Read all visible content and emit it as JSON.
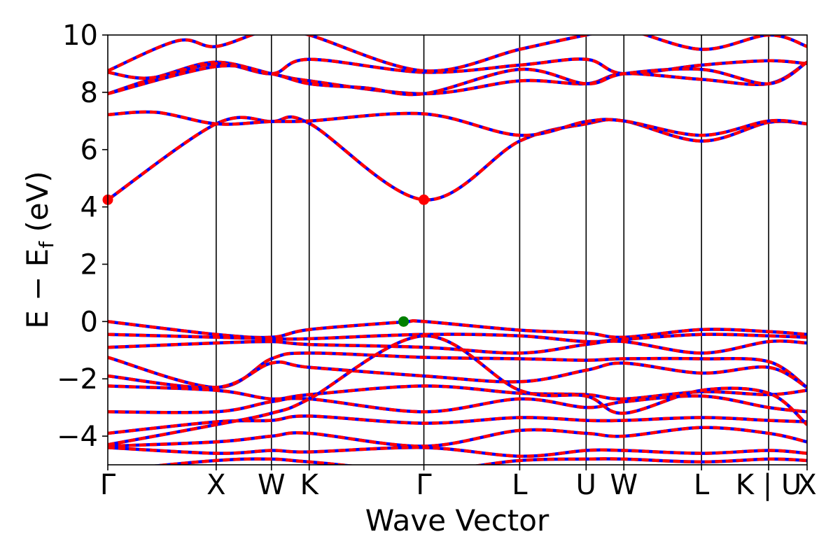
{
  "chart_data": {
    "type": "line",
    "xlabel": "Wave Vector",
    "ylabel": "E − E_f (eV)",
    "ylabel_main": "E  −  E",
    "ylabel_sub": "f",
    "ylabel_unit": " (eV)",
    "ylim": [
      -5,
      10
    ],
    "yticks": [
      "−4",
      "−2",
      "0",
      "2",
      "4",
      "6",
      "8",
      "10"
    ],
    "ytick_values": [
      -4,
      -2,
      0,
      2,
      4,
      6,
      8,
      10
    ],
    "x_range": [
      0,
      1
    ],
    "kpoint_labels": [
      "Γ",
      "X",
      "W",
      "K",
      "Γ",
      "L",
      "U",
      "W",
      "L",
      "K | U",
      "X"
    ],
    "kpoint_positions": [
      0.0,
      0.155,
      0.234,
      0.288,
      0.452,
      0.589,
      0.684,
      0.738,
      0.849,
      0.945,
      1.0
    ],
    "grid": false,
    "legend": "none",
    "colors": {
      "spin_up": "#0000ff",
      "spin_down": "#ff0000",
      "cbm": "#ff0000",
      "vbm": "#008000",
      "kpath_line": "#000000"
    },
    "markers": [
      {
        "name": "CBM",
        "x": 0.0,
        "y": 4.25,
        "color": "#ff0000"
      },
      {
        "name": "CBM",
        "x": 0.452,
        "y": 4.25,
        "color": "#ff0000"
      },
      {
        "name": "VBM",
        "x": 0.423,
        "y": 0.0,
        "color": "#008000"
      }
    ],
    "series": [
      {
        "x": [
          0,
          0.155,
          0.234,
          0.288,
          0.452,
          0.589,
          0.684,
          0.738,
          0.849,
          0.945,
          1.0
        ],
        "values": [
          4.25,
          6.9,
          6.98,
          6.92,
          4.25,
          6.3,
          6.9,
          7.0,
          6.3,
          6.95,
          6.9
        ]
      },
      {
        "x": [
          0,
          0.07,
          0.155,
          0.234,
          0.288,
          0.452,
          0.589,
          0.684,
          0.738,
          0.849,
          0.945,
          1.0
        ],
        "values": [
          7.22,
          7.3,
          6.9,
          6.98,
          7.0,
          7.25,
          6.5,
          6.98,
          7.0,
          6.5,
          7.0,
          6.9
        ]
      },
      {
        "x": [
          0,
          0.08,
          0.155,
          0.234,
          0.288,
          0.452,
          0.589,
          0.684,
          0.738,
          0.849,
          0.945,
          1.0
        ],
        "values": [
          7.95,
          8.6,
          9.05,
          8.65,
          8.4,
          7.95,
          8.4,
          8.3,
          8.65,
          8.45,
          8.3,
          9.05
        ]
      },
      {
        "x": [
          0,
          0.06,
          0.155,
          0.234,
          0.288,
          0.452,
          0.589,
          0.684,
          0.738,
          0.849,
          0.945,
          1.0
        ],
        "values": [
          8.7,
          8.5,
          9.0,
          8.65,
          9.15,
          8.7,
          8.95,
          9.15,
          8.65,
          8.95,
          9.1,
          9.0
        ]
      },
      {
        "x": [
          0,
          0.1,
          0.155,
          0.234,
          0.288,
          0.452,
          0.589,
          0.684,
          0.738,
          0.849,
          0.945,
          1.0
        ],
        "values": [
          8.75,
          9.8,
          9.6,
          10.2,
          10.0,
          8.75,
          9.5,
          10.0,
          10.2,
          9.5,
          10.0,
          9.6
        ]
      },
      {
        "x": [
          0,
          0.155,
          0.234,
          0.288,
          0.37,
          0.452,
          0.589,
          0.684,
          0.738,
          0.849,
          0.945,
          1.0
        ],
        "values": [
          7.95,
          8.9,
          8.65,
          8.3,
          8.15,
          7.95,
          8.8,
          8.3,
          8.65,
          8.8,
          8.3,
          9.05
        ]
      },
      {
        "x": [
          0,
          0.155,
          0.234,
          0.288,
          0.42,
          0.452,
          0.589,
          0.684,
          0.738,
          0.849,
          0.945,
          1.0
        ],
        "values": [
          0.0,
          -0.45,
          -0.55,
          -0.28,
          -0.02,
          0.0,
          -0.3,
          -0.4,
          -0.55,
          -0.28,
          -0.35,
          -0.45
        ]
      },
      {
        "x": [
          0,
          0.155,
          0.234,
          0.288,
          0.452,
          0.589,
          0.684,
          0.738,
          0.849,
          0.945,
          1.0
        ],
        "values": [
          -0.45,
          -0.55,
          -0.6,
          -0.6,
          -0.45,
          -0.5,
          -0.7,
          -0.62,
          -0.45,
          -0.5,
          -0.55
        ]
      },
      {
        "x": [
          0,
          0.155,
          0.234,
          0.288,
          0.452,
          0.589,
          0.684,
          0.738,
          0.849,
          0.945,
          1.0
        ],
        "values": [
          -0.9,
          -0.75,
          -0.7,
          -0.8,
          -0.9,
          -1.1,
          -0.8,
          -0.7,
          -1.1,
          -0.7,
          -0.75
        ]
      },
      {
        "x": [
          0,
          0.155,
          0.234,
          0.288,
          0.452,
          0.589,
          0.684,
          0.738,
          0.849,
          0.945,
          1.0
        ],
        "values": [
          -1.25,
          -2.3,
          -1.3,
          -1.1,
          -1.25,
          -1.3,
          -1.35,
          -1.3,
          -1.3,
          -1.4,
          -2.3
        ]
      },
      {
        "x": [
          0,
          0.155,
          0.234,
          0.288,
          0.452,
          0.589,
          0.684,
          0.738,
          0.849,
          0.945,
          1.0
        ],
        "values": [
          -1.9,
          -2.3,
          -1.45,
          -1.6,
          -1.9,
          -2.1,
          -1.7,
          -1.45,
          -1.8,
          -1.6,
          -2.3
        ]
      },
      {
        "x": [
          0,
          0.155,
          0.234,
          0.288,
          0.452,
          0.589,
          0.684,
          0.738,
          0.849,
          0.945,
          1.0
        ],
        "values": [
          -2.25,
          -2.4,
          -2.7,
          -2.55,
          -2.25,
          -2.5,
          -2.55,
          -2.7,
          -2.45,
          -2.55,
          -2.4
        ]
      },
      {
        "x": [
          0,
          0.155,
          0.234,
          0.288,
          0.452,
          0.589,
          0.684,
          0.738,
          0.849,
          0.945,
          1.0
        ],
        "values": [
          -3.15,
          -3.15,
          -2.8,
          -2.7,
          -3.15,
          -2.7,
          -3.0,
          -2.8,
          -2.6,
          -3.0,
          -3.15
        ]
      },
      {
        "x": [
          0,
          0.155,
          0.234,
          0.288,
          0.452,
          0.589,
          0.684,
          0.738,
          0.849,
          0.945,
          1.0
        ],
        "values": [
          -3.9,
          -3.5,
          -3.45,
          -3.3,
          -3.55,
          -3.35,
          -3.45,
          -3.45,
          -3.35,
          -3.45,
          -3.5
        ]
      },
      {
        "x": [
          0,
          0.155,
          0.234,
          0.288,
          0.452,
          0.589,
          0.684,
          0.738,
          0.849,
          0.945,
          1.0
        ],
        "values": [
          -4.35,
          -4.2,
          -4.0,
          -3.9,
          -4.35,
          -3.8,
          -3.9,
          -4.0,
          -3.7,
          -3.9,
          -4.2
        ]
      },
      {
        "x": [
          0,
          0.155,
          0.234,
          0.288,
          0.452,
          0.589,
          0.684,
          0.738,
          0.849,
          0.945,
          1.0
        ],
        "values": [
          -4.4,
          -4.6,
          -4.5,
          -4.55,
          -4.4,
          -4.7,
          -4.5,
          -4.5,
          -4.6,
          -4.5,
          -4.6
        ]
      },
      {
        "x": [
          0,
          0.155,
          0.234,
          0.288,
          0.452,
          0.589,
          0.684,
          0.738,
          0.849,
          0.945,
          1.0
        ],
        "values": [
          -5.2,
          -4.85,
          -4.8,
          -4.9,
          -5.2,
          -4.85,
          -4.8,
          -4.8,
          -4.9,
          -4.8,
          -4.85
        ]
      },
      {
        "x": [
          0,
          0.155,
          0.234,
          0.288,
          0.452,
          0.589,
          0.684,
          0.738,
          0.849,
          0.945,
          1.0
        ],
        "values": [
          -4.3,
          -3.6,
          -3.2,
          -2.7,
          -0.5,
          -2.4,
          -2.6,
          -3.2,
          -2.4,
          -2.5,
          -3.6
        ]
      }
    ]
  }
}
